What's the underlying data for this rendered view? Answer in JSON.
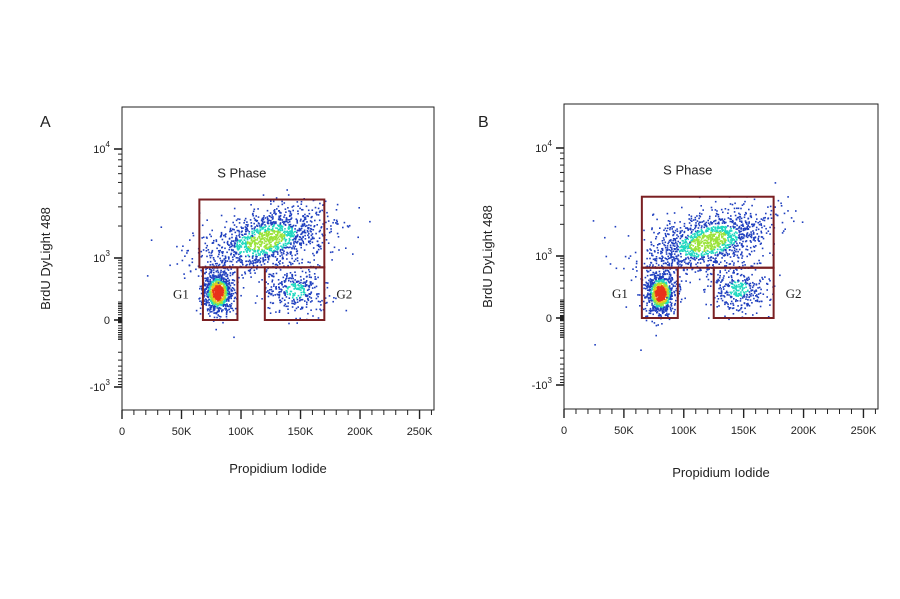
{
  "panels": [
    {
      "panel_label": "A",
      "gate_labels": {
        "s_phase": "S Phase",
        "g1": "G1",
        "g2": "G2"
      },
      "chart_data": {
        "type": "scatter",
        "title": "",
        "xlabel": "Propidium Iodide",
        "ylabel": "BrdU DyLight 488",
        "x_scale": "linear",
        "y_scale": "biexponential",
        "xlim": [
          0,
          262144
        ],
        "x_ticks": [
          {
            "value": 0,
            "label": "0"
          },
          {
            "value": 50000,
            "label": "50K"
          },
          {
            "value": 100000,
            "label": "100K"
          },
          {
            "value": 150000,
            "label": "150K"
          },
          {
            "value": 200000,
            "label": "200K"
          },
          {
            "value": 250000,
            "label": "250K"
          }
        ],
        "y_ticks": [
          {
            "value": -1000,
            "label_base": "-10",
            "label_exp": "3"
          },
          {
            "value": 0,
            "label_base": "0",
            "label_exp": ""
          },
          {
            "value": 1000,
            "label_base": "10",
            "label_exp": "3"
          },
          {
            "value": 10000,
            "label_base": "10",
            "label_exp": "4"
          }
        ],
        "gates": [
          {
            "name": "S Phase",
            "x": [
              65000,
              170000
            ],
            "y": [
              650,
              3500
            ]
          },
          {
            "name": "G1",
            "x": [
              68000,
              97000
            ],
            "y": [
              0,
              650
            ]
          },
          {
            "name": "G2",
            "x": [
              120000,
              170000
            ],
            "y": [
              0,
              650
            ]
          }
        ],
        "clusters": [
          {
            "population": "G1",
            "center": [
              80000,
              180
            ],
            "relative_density": "highest"
          },
          {
            "population": "S Phase",
            "center": [
              120000,
              1500
            ],
            "relative_density": "medium"
          },
          {
            "population": "G2",
            "center": [
              145000,
              200
            ],
            "relative_density": "low"
          }
        ],
        "grid": false,
        "legend": "none",
        "colors": {
          "gate": "#7a1f22",
          "density_low": "#1f3fbf",
          "density_mid": "#1fd8c0",
          "density_high": "#e8321c"
        }
      }
    },
    {
      "panel_label": "B",
      "gate_labels": {
        "s_phase": "S Phase",
        "g1": "G1",
        "g2": "G2"
      },
      "chart_data": {
        "type": "scatter",
        "title": "",
        "xlabel": "Propidium Iodide",
        "ylabel": "BrdU DyLight 488",
        "x_scale": "linear",
        "y_scale": "biexponential",
        "xlim": [
          0,
          262144
        ],
        "x_ticks": [
          {
            "value": 0,
            "label": "0"
          },
          {
            "value": 50000,
            "label": "50K"
          },
          {
            "value": 100000,
            "label": "100K"
          },
          {
            "value": 150000,
            "label": "150K"
          },
          {
            "value": 200000,
            "label": "200K"
          },
          {
            "value": 250000,
            "label": "250K"
          }
        ],
        "y_ticks": [
          {
            "value": -1000,
            "label_base": "-10",
            "label_exp": "3"
          },
          {
            "value": 0,
            "label_base": "0",
            "label_exp": ""
          },
          {
            "value": 1000,
            "label_base": "10",
            "label_exp": "3"
          },
          {
            "value": 10000,
            "label_base": "10",
            "label_exp": "4"
          }
        ],
        "gates": [
          {
            "name": "S Phase",
            "x": [
              65000,
              175000
            ],
            "y": [
              580,
              3600
            ]
          },
          {
            "name": "G1",
            "x": [
              65000,
              95000
            ],
            "y": [
              0,
              580
            ]
          },
          {
            "name": "G2",
            "x": [
              125000,
              175000
            ],
            "y": [
              0,
              580
            ]
          }
        ],
        "clusters": [
          {
            "population": "G1",
            "center": [
              80000,
              150
            ],
            "relative_density": "highest"
          },
          {
            "population": "S Phase",
            "center": [
              120000,
              1400
            ],
            "relative_density": "medium"
          },
          {
            "population": "G2",
            "center": [
              145000,
              200
            ],
            "relative_density": "low"
          }
        ],
        "grid": false,
        "legend": "none",
        "colors": {
          "gate": "#7a1f22",
          "density_low": "#1f3fbf",
          "density_mid": "#1fd8c0",
          "density_high": "#e8321c"
        }
      }
    }
  ]
}
